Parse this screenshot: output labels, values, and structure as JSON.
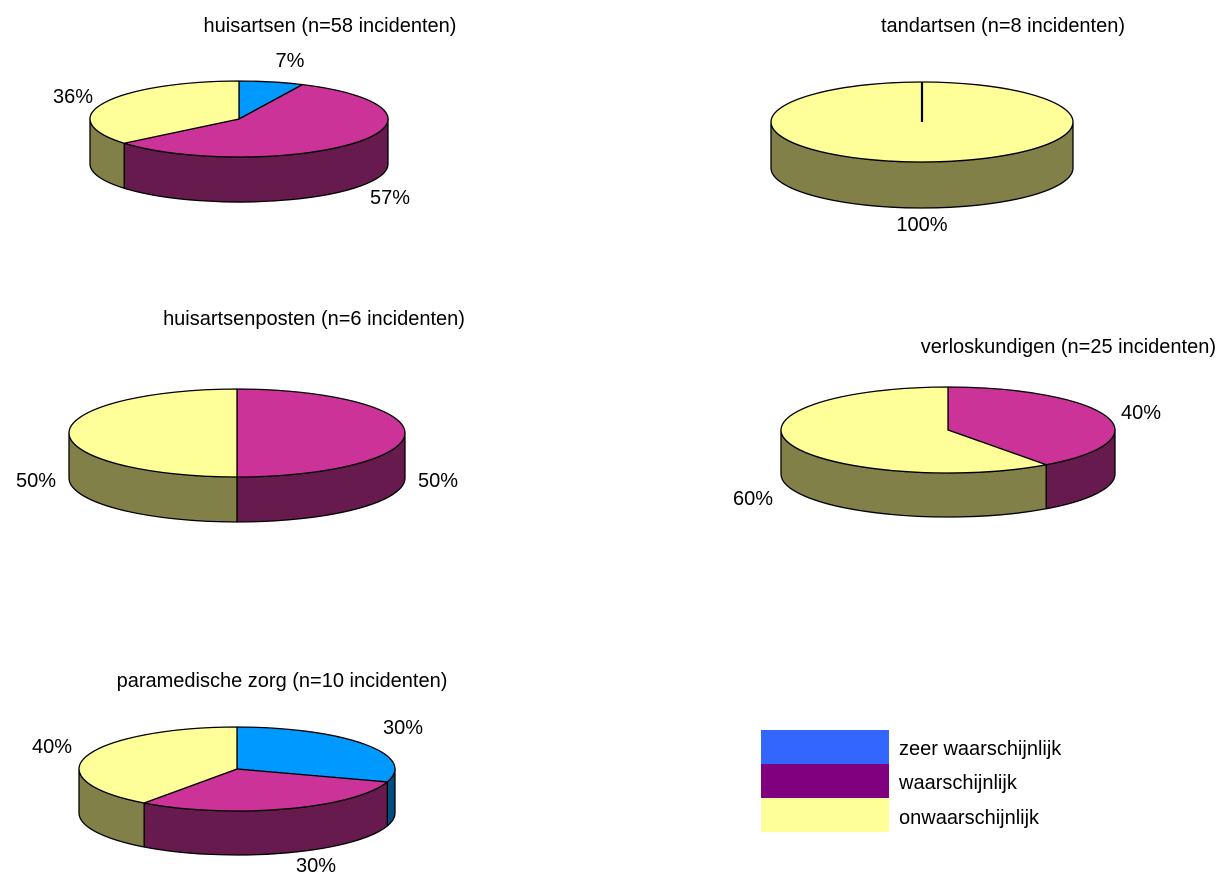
{
  "chart_data": [
    {
      "type": "pie",
      "title": "huisartsen (n=58 incidenten)",
      "slices": [
        {
          "category": "zeer waarschijnlijk",
          "value": 7,
          "label": "7%"
        },
        {
          "category": "waarschijnlijk",
          "value": 57,
          "label": "57%"
        },
        {
          "category": "onwaarschijnlijk",
          "value": 36,
          "label": "36%"
        }
      ]
    },
    {
      "type": "pie",
      "title": "tandartsen (n=8 incidenten)",
      "slices": [
        {
          "category": "onwaarschijnlijk",
          "value": 100,
          "label": "100%"
        }
      ]
    },
    {
      "type": "pie",
      "title": "huisartsenposten (n=6 incidenten)",
      "slices": [
        {
          "category": "waarschijnlijk",
          "value": 50,
          "label": "50%"
        },
        {
          "category": "onwaarschijnlijk",
          "value": 50,
          "label": "50%"
        }
      ]
    },
    {
      "type": "pie",
      "title": "verloskundigen (n=25 incidenten)",
      "slices": [
        {
          "category": "waarschijnlijk",
          "value": 40,
          "label": "40%"
        },
        {
          "category": "onwaarschijnlijk",
          "value": 60,
          "label": "60%"
        }
      ]
    },
    {
      "type": "pie",
      "title": "paramedische zorg (n=10 incidenten)",
      "slices": [
        {
          "category": "zeer waarschijnlijk",
          "value": 30,
          "label": "30%"
        },
        {
          "category": "waarschijnlijk",
          "value": 30,
          "label": "30%"
        },
        {
          "category": "onwaarschijnlijk",
          "value": 40,
          "label": "40%"
        }
      ]
    }
  ],
  "legend": {
    "items": [
      {
        "key": "zeer",
        "label": "zeer waarschijnlijk",
        "color": "#3366ff"
      },
      {
        "key": "waar",
        "label": "waarschijnlijk",
        "color": "#800080"
      },
      {
        "key": "onwaar",
        "label": "onwaarschijnlijk",
        "color": "#ffff99"
      }
    ]
  },
  "colors": {
    "zeer waarschijnlijk": {
      "top": "#0099ff",
      "side": "#004d80"
    },
    "waarschijnlijk": {
      "top": "#cc3399",
      "side": "#661a4d"
    },
    "onwaarschijnlijk": {
      "top": "#ffff99",
      "side": "#808048"
    }
  }
}
